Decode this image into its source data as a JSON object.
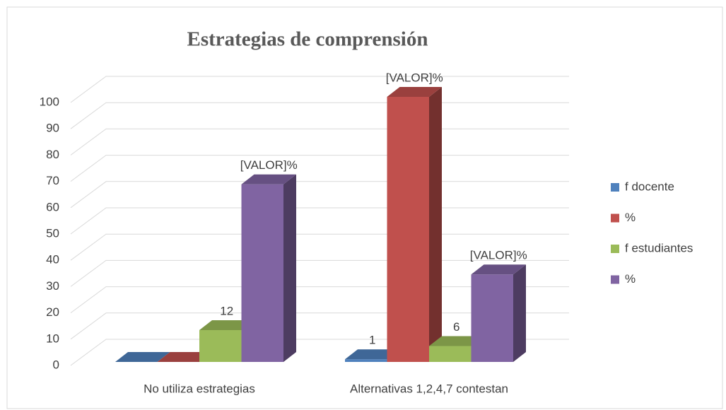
{
  "chart_data": {
    "type": "bar3d",
    "title": "Estrategias de comprensión",
    "categories": [
      "No utiliza estrategias",
      "Alternativas 1,2,4,7 contestan"
    ],
    "series": [
      {
        "name": "f docente",
        "color": "#4f81bd",
        "values": [
          0,
          1
        ],
        "value_labels": [
          null,
          "1"
        ]
      },
      {
        "name": "%",
        "color": "#c0504d",
        "values": [
          0,
          100
        ],
        "value_labels": [
          null,
          "[VALOR]%"
        ]
      },
      {
        "name": "f estudiantes",
        "color": "#9bbb59",
        "values": [
          12,
          6
        ],
        "value_labels": [
          "12",
          "6"
        ]
      },
      {
        "name": "%",
        "color": "#8064a2",
        "values": [
          67,
          33
        ],
        "value_labels": [
          "[VALOR]%",
          "[VALOR]%"
        ]
      }
    ],
    "ylim": [
      0,
      100
    ],
    "yticks": [
      0,
      10,
      20,
      30,
      40,
      50,
      60,
      70,
      80,
      90,
      100
    ],
    "grid": true,
    "legend": "right"
  }
}
